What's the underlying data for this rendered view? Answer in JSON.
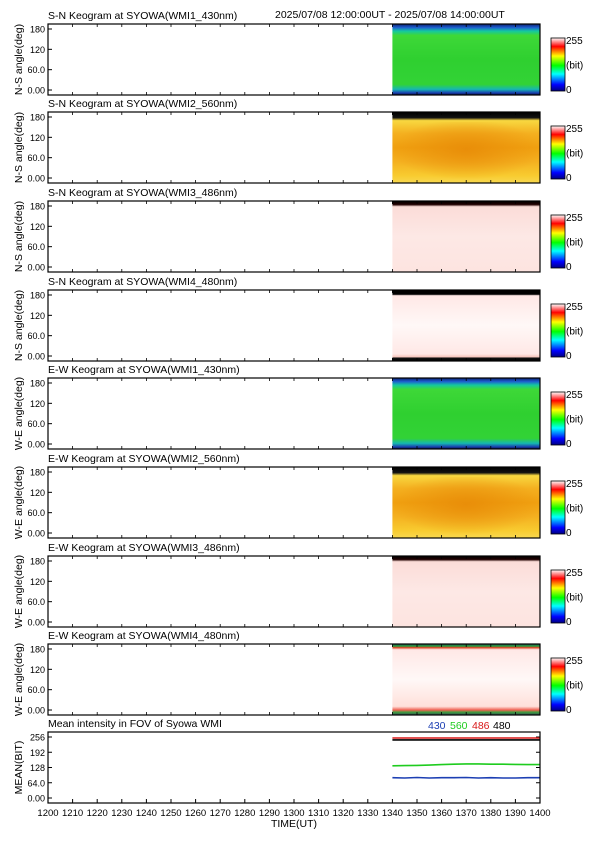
{
  "header": {
    "time_range": "2025/07/08 12:00:00UT - 2025/07/08 14:00:00UT"
  },
  "colorbar": {
    "max_label": "255",
    "unit_label": "(bit)",
    "min_label": "0"
  },
  "colors": {
    "green": "#22cc22",
    "orange": "#f0a818",
    "pink": "#fde8e6",
    "blue_edge": "#1a3aa0",
    "s430": "#1c3fb3",
    "s560": "#1fcc1f",
    "s486": "#d81818",
    "s480": "#000000"
  },
  "chart_data": [
    {
      "type": "heatmap",
      "title": "S-N Keogram at SYOWA(WMI1_430nm)",
      "ylabel": "N-S angle(deg)",
      "yticks": [
        "180",
        "120",
        "60.0",
        "0.00"
      ],
      "ylim": [
        0,
        180
      ],
      "data_start": 1340,
      "data_end": 1400,
      "fill": "green"
    },
    {
      "type": "heatmap",
      "title": "S-N Keogram at SYOWA(WMI2_560nm)",
      "ylabel": "N-S angle(deg)",
      "yticks": [
        "180",
        "120",
        "60.0",
        "0.00"
      ],
      "ylim": [
        0,
        180
      ],
      "data_start": 1340,
      "data_end": 1400,
      "fill": "orange"
    },
    {
      "type": "heatmap",
      "title": "S-N Keogram at SYOWA(WMI3_486nm)",
      "ylabel": "N-S angle(deg)",
      "yticks": [
        "180",
        "120",
        "60.0",
        "0.00"
      ],
      "ylim": [
        0,
        180
      ],
      "data_start": 1340,
      "data_end": 1400,
      "fill": "pink"
    },
    {
      "type": "heatmap",
      "title": "S-N Keogram at SYOWA(WMI4_480nm)",
      "ylabel": "N-S angle(deg)",
      "yticks": [
        "180",
        "120",
        "60.0",
        "0.00"
      ],
      "ylim": [
        0,
        180
      ],
      "data_start": 1340,
      "data_end": 1400,
      "fill": "white"
    },
    {
      "type": "heatmap",
      "title": "E-W Keogram at SYOWA(WMI1_430nm)",
      "ylabel": "W-E angle(deg)",
      "yticks": [
        "180",
        "120",
        "60.0",
        "0.00"
      ],
      "ylim": [
        0,
        180
      ],
      "data_start": 1340,
      "data_end": 1400,
      "fill": "green"
    },
    {
      "type": "heatmap",
      "title": "E-W Keogram at SYOWA(WMI2_560nm)",
      "ylabel": "W-E angle(deg)",
      "yticks": [
        "180",
        "120",
        "60.0",
        "0.00"
      ],
      "ylim": [
        0,
        180
      ],
      "data_start": 1340,
      "data_end": 1400,
      "fill": "orange"
    },
    {
      "type": "heatmap",
      "title": "E-W Keogram at SYOWA(WMI3_486nm)",
      "ylabel": "W-E angle(deg)",
      "yticks": [
        "180",
        "120",
        "60.0",
        "0.00"
      ],
      "ylim": [
        0,
        180
      ],
      "data_start": 1340,
      "data_end": 1400,
      "fill": "pink"
    },
    {
      "type": "heatmap",
      "title": "E-W Keogram at SYOWA(WMI4_480nm)",
      "ylabel": "W-E angle(deg)",
      "yticks": [
        "180",
        "120",
        "60.0",
        "0.00"
      ],
      "ylim": [
        0,
        180
      ],
      "data_start": 1340,
      "data_end": 1400,
      "fill": "white"
    },
    {
      "type": "line",
      "title": "Mean intensity in FOV of Syowa WMI",
      "ylabel": "MEAN(BIT)",
      "xlabel": "TIME(UT)",
      "yticks": [
        "256",
        "192",
        "128",
        "64.0",
        "0.00"
      ],
      "ylim": [
        0,
        256
      ],
      "xlim": [
        1200,
        1400
      ],
      "x_ticks": [
        "1200",
        "1210",
        "1220",
        "1230",
        "1240",
        "1250",
        "1260",
        "1270",
        "1280",
        "1290",
        "1300",
        "1310",
        "1320",
        "1330",
        "1340",
        "1350",
        "1360",
        "1370",
        "1380",
        "1390",
        "1400"
      ],
      "series": [
        {
          "name": "430",
          "color": "s430",
          "x": [
            1340,
            1345,
            1350,
            1355,
            1360,
            1365,
            1370,
            1375,
            1380,
            1385,
            1390,
            1395,
            1400
          ],
          "y": [
            85,
            84,
            86,
            84,
            85,
            85,
            86,
            84,
            85,
            84,
            84,
            85,
            85
          ]
        },
        {
          "name": "560",
          "color": "s560",
          "x": [
            1340,
            1345,
            1350,
            1355,
            1360,
            1365,
            1370,
            1375,
            1380,
            1385,
            1390,
            1395,
            1400
          ],
          "y": [
            135,
            136,
            137,
            138,
            140,
            142,
            143,
            143,
            142,
            142,
            141,
            140,
            140
          ]
        },
        {
          "name": "486",
          "color": "s486",
          "x": [
            1340,
            1345,
            1350,
            1355,
            1360,
            1365,
            1370,
            1375,
            1380,
            1385,
            1390,
            1395,
            1400
          ],
          "y": [
            252,
            252,
            252,
            252,
            252,
            252,
            252,
            252,
            252,
            252,
            252,
            252,
            252
          ]
        },
        {
          "name": "480",
          "color": "s480",
          "x": [
            1340,
            1345,
            1350,
            1355,
            1360,
            1365,
            1370,
            1375,
            1380,
            1385,
            1390,
            1395,
            1400
          ],
          "y": [
            244,
            244,
            244,
            244,
            244,
            244,
            244,
            244,
            244,
            244,
            244,
            244,
            244
          ]
        }
      ]
    }
  ]
}
